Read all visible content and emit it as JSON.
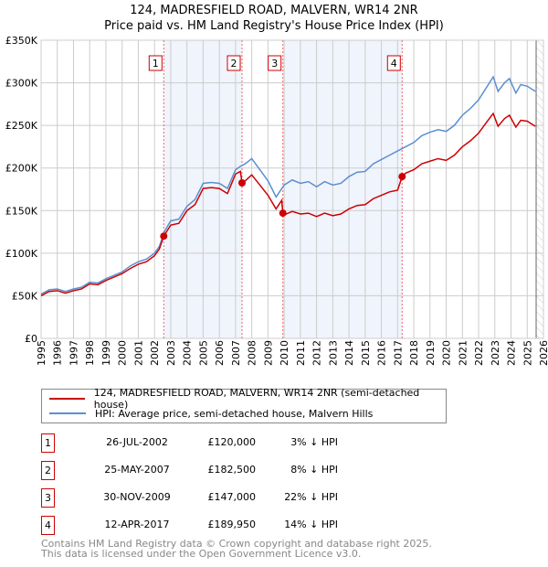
{
  "chart_data": {
    "type": "line",
    "title": "124, MADRESFIELD ROAD, MALVERN, WR14 2NR",
    "subtitle": "Price paid vs. HM Land Registry's House Price Index (HPI)",
    "xlim": [
      1995,
      2026
    ],
    "ylim": [
      0,
      350000
    ],
    "x_ticks": [
      "1995",
      "1996",
      "1997",
      "1998",
      "1999",
      "2000",
      "2001",
      "2002",
      "2003",
      "2004",
      "2005",
      "2006",
      "2007",
      "2008",
      "2009",
      "2010",
      "2011",
      "2012",
      "2013",
      "2014",
      "2015",
      "2016",
      "2017",
      "2018",
      "2019",
      "2020",
      "2021",
      "2022",
      "2023",
      "2024",
      "2025",
      "2026"
    ],
    "y_ticks": [
      {
        "v": 0,
        "label": "£0"
      },
      {
        "v": 50000,
        "label": "£50K"
      },
      {
        "v": 100000,
        "label": "£100K"
      },
      {
        "v": 150000,
        "label": "£150K"
      },
      {
        "v": 200000,
        "label": "£200K"
      },
      {
        "v": 250000,
        "label": "£250K"
      },
      {
        "v": 300000,
        "label": "£300K"
      },
      {
        "v": 350000,
        "label": "£350K"
      }
    ],
    "grid": true,
    "shaded_ranges": [
      [
        2002.57,
        2007.4
      ],
      [
        2009.92,
        2017.28
      ]
    ],
    "future_hatch_from": 2025.55,
    "colors": {
      "price": "#cc0000",
      "hpi": "#5b8fd0",
      "shade": "#f0f4fc"
    },
    "series": [
      {
        "name": "124, MADRESFIELD ROAD, MALVERN, WR14 2NR (semi-detached house)",
        "color": "#cc0000",
        "points": [
          [
            1995,
            50
          ],
          [
            1995.5,
            55
          ],
          [
            1996,
            56
          ],
          [
            1996.5,
            53
          ],
          [
            1997,
            56
          ],
          [
            1997.5,
            58
          ],
          [
            1998,
            64
          ],
          [
            1998.5,
            63
          ],
          [
            1999,
            68
          ],
          [
            1999.5,
            72
          ],
          [
            2000,
            76
          ],
          [
            2000.5,
            82
          ],
          [
            2001,
            87
          ],
          [
            2001.5,
            90
          ],
          [
            2002,
            97
          ],
          [
            2002.3,
            105
          ],
          [
            2002.57,
            120
          ],
          [
            2003,
            133
          ],
          [
            2003.5,
            135
          ],
          [
            2004,
            150
          ],
          [
            2004.5,
            157
          ],
          [
            2005,
            176
          ],
          [
            2005.5,
            177
          ],
          [
            2006,
            176
          ],
          [
            2006.5,
            170
          ],
          [
            2007,
            193
          ],
          [
            2007.3,
            196
          ],
          [
            2007.4,
            182.5
          ],
          [
            2007.6,
            185
          ],
          [
            2008,
            192
          ],
          [
            2008.5,
            180
          ],
          [
            2009,
            168
          ],
          [
            2009.5,
            152
          ],
          [
            2009.85,
            162
          ],
          [
            2009.92,
            147
          ],
          [
            2010,
            145
          ],
          [
            2010.5,
            149
          ],
          [
            2011,
            146
          ],
          [
            2011.5,
            147
          ],
          [
            2012,
            143
          ],
          [
            2012.5,
            147
          ],
          [
            2013,
            144
          ],
          [
            2013.5,
            146
          ],
          [
            2014,
            152
          ],
          [
            2014.5,
            156
          ],
          [
            2015,
            157
          ],
          [
            2015.5,
            164
          ],
          [
            2016,
            168
          ],
          [
            2016.5,
            172
          ],
          [
            2017,
            174
          ],
          [
            2017.28,
            189.95
          ],
          [
            2017.5,
            194
          ],
          [
            2018,
            198
          ],
          [
            2018.5,
            205
          ],
          [
            2019,
            208
          ],
          [
            2019.5,
            211
          ],
          [
            2020,
            209
          ],
          [
            2020.5,
            215
          ],
          [
            2021,
            225
          ],
          [
            2021.5,
            232
          ],
          [
            2022,
            241
          ],
          [
            2022.5,
            254
          ],
          [
            2022.9,
            264
          ],
          [
            2023.2,
            249
          ],
          [
            2023.6,
            258
          ],
          [
            2023.9,
            262
          ],
          [
            2024.3,
            248
          ],
          [
            2024.6,
            256
          ],
          [
            2025,
            255
          ],
          [
            2025.5,
            249
          ]
        ]
      },
      {
        "name": "HPI: Average price, semi-detached house, Malvern Hills",
        "color": "#5b8fd0",
        "points": [
          [
            1995,
            52
          ],
          [
            1995.5,
            57
          ],
          [
            1996,
            58
          ],
          [
            1996.5,
            55
          ],
          [
            1997,
            58
          ],
          [
            1997.5,
            60
          ],
          [
            1998,
            66
          ],
          [
            1998.5,
            65
          ],
          [
            1999,
            70
          ],
          [
            1999.5,
            74
          ],
          [
            2000,
            78
          ],
          [
            2000.5,
            85
          ],
          [
            2001,
            90
          ],
          [
            2001.5,
            93
          ],
          [
            2002,
            100
          ],
          [
            2002.3,
            108
          ],
          [
            2002.6,
            125
          ],
          [
            2003,
            138
          ],
          [
            2003.5,
            140
          ],
          [
            2004,
            155
          ],
          [
            2004.5,
            163
          ],
          [
            2005,
            182
          ],
          [
            2005.5,
            183
          ],
          [
            2006,
            182
          ],
          [
            2006.5,
            176
          ],
          [
            2007,
            198
          ],
          [
            2007.3,
            202
          ],
          [
            2007.6,
            205
          ],
          [
            2008,
            211
          ],
          [
            2008.5,
            198
          ],
          [
            2009,
            185
          ],
          [
            2009.5,
            166
          ],
          [
            2010,
            180
          ],
          [
            2010.5,
            186
          ],
          [
            2011,
            182
          ],
          [
            2011.5,
            184
          ],
          [
            2012,
            178
          ],
          [
            2012.5,
            184
          ],
          [
            2013,
            180
          ],
          [
            2013.5,
            182
          ],
          [
            2014,
            190
          ],
          [
            2014.5,
            195
          ],
          [
            2015,
            196
          ],
          [
            2015.5,
            205
          ],
          [
            2016,
            210
          ],
          [
            2016.5,
            215
          ],
          [
            2017,
            220
          ],
          [
            2017.5,
            225
          ],
          [
            2018,
            230
          ],
          [
            2018.5,
            238
          ],
          [
            2019,
            242
          ],
          [
            2019.5,
            245
          ],
          [
            2020,
            243
          ],
          [
            2020.5,
            250
          ],
          [
            2021,
            262
          ],
          [
            2021.5,
            270
          ],
          [
            2022,
            280
          ],
          [
            2022.5,
            295
          ],
          [
            2022.9,
            307
          ],
          [
            2023.2,
            290
          ],
          [
            2023.6,
            300
          ],
          [
            2023.9,
            305
          ],
          [
            2024.3,
            288
          ],
          [
            2024.6,
            298
          ],
          [
            2025,
            296
          ],
          [
            2025.5,
            290
          ]
        ]
      }
    ],
    "sales": [
      {
        "n": "1",
        "x": 2002.57,
        "price": 120000,
        "date": "26-JUL-2002",
        "price_label": "£120,000",
        "pct": "3% ↓ HPI"
      },
      {
        "n": "2",
        "x": 2007.4,
        "price": 182500,
        "date": "25-MAY-2007",
        "price_label": "£182,500",
        "pct": "8% ↓ HPI"
      },
      {
        "n": "3",
        "x": 2009.92,
        "price": 147000,
        "date": "30-NOV-2009",
        "price_label": "£147,000",
        "pct": "22% ↓ HPI"
      },
      {
        "n": "4",
        "x": 2017.28,
        "price": 189950,
        "date": "12-APR-2017",
        "price_label": "£189,950",
        "pct": "14% ↓ HPI"
      }
    ]
  },
  "legend": {
    "price": "124, MADRESFIELD ROAD, MALVERN, WR14 2NR (semi-detached house)",
    "hpi": "HPI: Average price, semi-detached house, Malvern Hills"
  },
  "footer": {
    "line1": "Contains HM Land Registry data © Crown copyright and database right 2025.",
    "line2": "This data is licensed under the Open Government Licence v3.0."
  }
}
